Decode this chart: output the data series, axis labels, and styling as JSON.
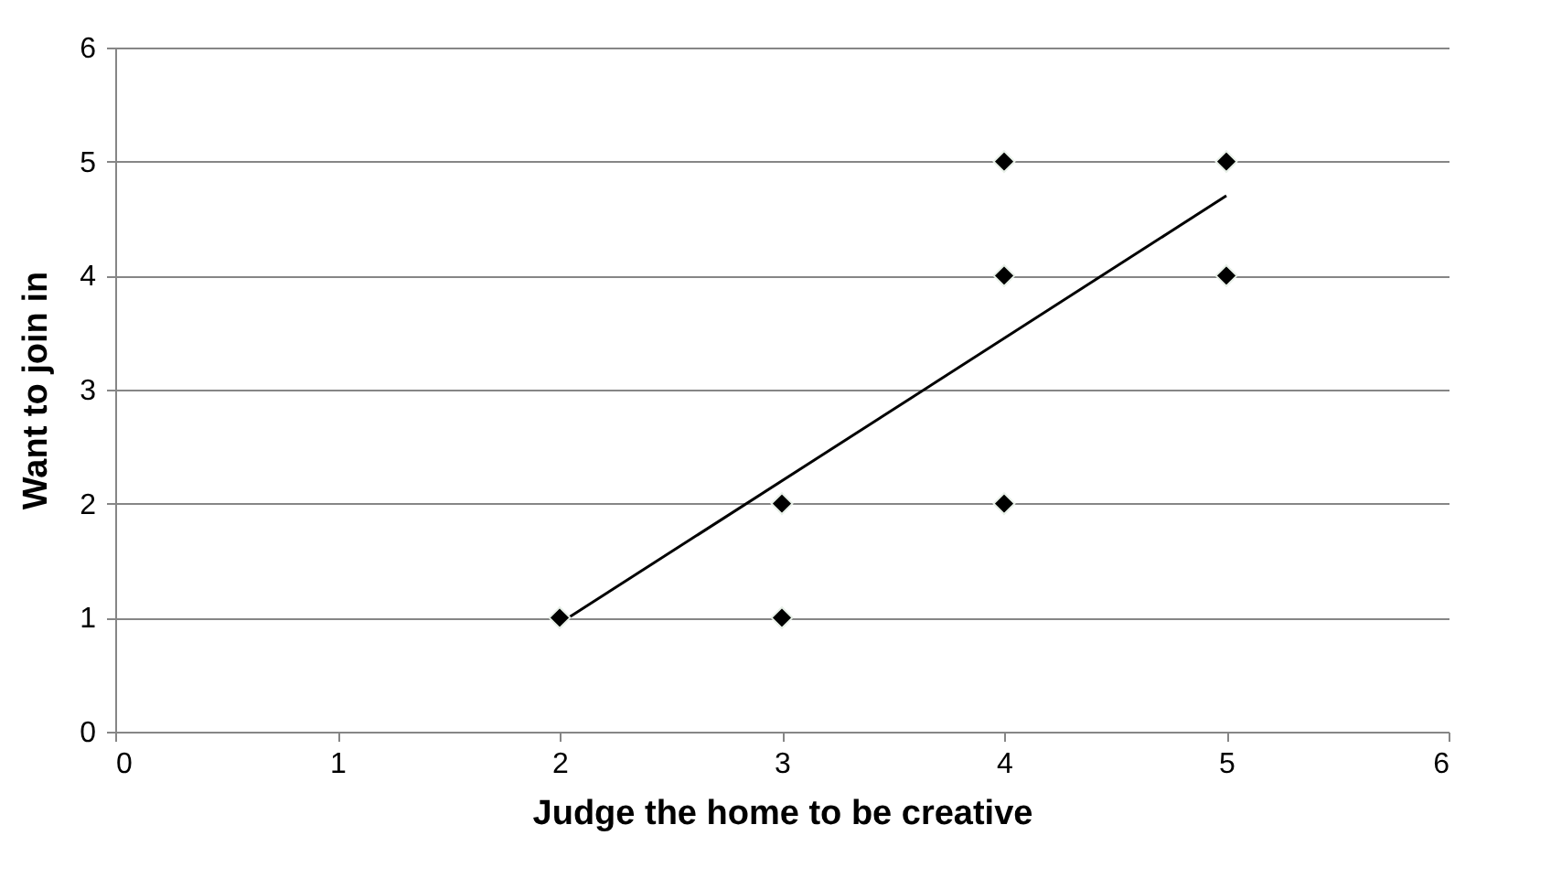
{
  "chart_data": {
    "type": "scatter",
    "xlabel": "Judge the home to be creative",
    "ylabel": "Want to join in",
    "xlim": [
      0,
      6
    ],
    "ylim": [
      0,
      6
    ],
    "xticks": [
      0,
      1,
      2,
      3,
      4,
      5,
      6
    ],
    "yticks": [
      0,
      1,
      2,
      3,
      4,
      5,
      6
    ],
    "grid": "y",
    "marker": "diamond",
    "series": [
      {
        "color": "#000000",
        "x": [
          2,
          3,
          3,
          4,
          4,
          4,
          5,
          5
        ],
        "values": [
          1,
          1,
          2,
          2,
          4,
          5,
          4,
          5
        ]
      },
      {
        "type": "line",
        "marker": "none",
        "color": "#000000",
        "x": [
          2,
          5
        ],
        "values": [
          0.95,
          4.7
        ]
      }
    ]
  }
}
